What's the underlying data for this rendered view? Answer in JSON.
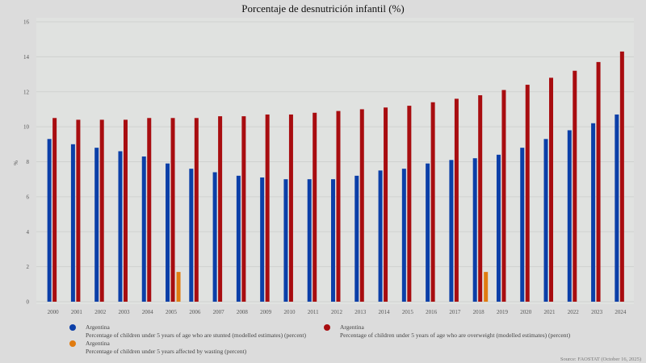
{
  "chart_data": {
    "type": "bar",
    "title": "Porcentaje de desnutrición infantil (%)",
    "xlabel": "",
    "ylabel": "%",
    "ylim": [
      0,
      16
    ],
    "yticks": [
      0,
      2,
      4,
      6,
      8,
      10,
      12,
      14,
      16
    ],
    "grid": true,
    "legend_position": "bottom",
    "categories": [
      "2000",
      "2001",
      "2002",
      "2003",
      "2004",
      "2005",
      "2006",
      "2007",
      "2008",
      "2009",
      "2010",
      "2011",
      "2012",
      "2013",
      "2014",
      "2015",
      "2016",
      "2017",
      "2018",
      "2019",
      "2020",
      "2021",
      "2022",
      "2023",
      "2024"
    ],
    "series": [
      {
        "name": "Argentina",
        "description": "Percentage of children under 5 years of age who are stunted (modelled estimates) (percent)",
        "color": "#0b3fa8",
        "values": [
          9.3,
          9.0,
          8.8,
          8.6,
          8.3,
          7.9,
          7.6,
          7.4,
          7.2,
          7.1,
          7.0,
          7.0,
          7.0,
          7.2,
          7.5,
          7.6,
          7.9,
          8.1,
          8.2,
          8.4,
          8.8,
          9.3,
          9.8,
          10.2,
          10.7
        ]
      },
      {
        "name": "Argentina",
        "description": "Percentage of children under 5 years of age who are overweight (modelled estimates) (percent)",
        "color": "#a80d10",
        "values": [
          10.5,
          10.4,
          10.4,
          10.4,
          10.5,
          10.5,
          10.5,
          10.6,
          10.6,
          10.7,
          10.7,
          10.8,
          10.9,
          11.0,
          11.1,
          11.2,
          11.4,
          11.6,
          11.8,
          12.1,
          12.4,
          12.8,
          13.2,
          13.7,
          14.3
        ]
      },
      {
        "name": "Argentina",
        "description": "Percentage of children under 5 years affected by wasting (percent)",
        "color": "#e07b10",
        "values": [
          null,
          null,
          null,
          null,
          null,
          1.7,
          null,
          null,
          null,
          null,
          null,
          null,
          null,
          null,
          null,
          null,
          null,
          null,
          1.7,
          null,
          null,
          null,
          null,
          null,
          null
        ]
      }
    ],
    "source": "Source: FAOSTAT (October 16, 2025)"
  }
}
